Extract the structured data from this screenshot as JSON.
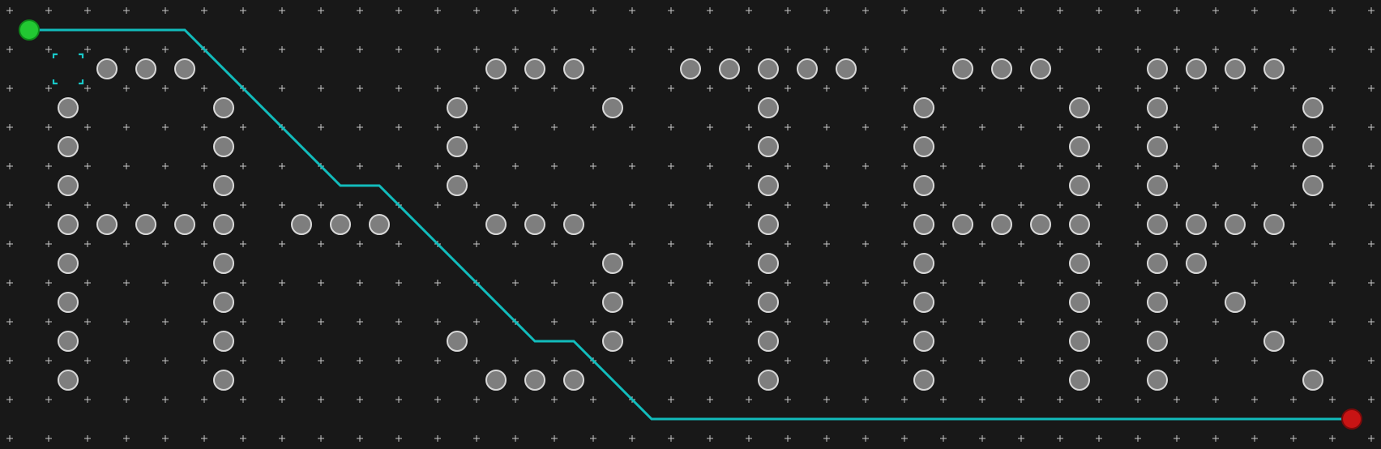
{
  "board": {
    "cols": 36,
    "rows": 12,
    "background": "#181818",
    "grid_marker_color": "#c8c8c8",
    "obstacle_fill": "#7e7e7e",
    "obstacle_stroke": "#d8d8d8",
    "path_color": "#12bcbc",
    "start_color": "#22c832",
    "goal_color": "#c81414"
  },
  "start": {
    "col": 0,
    "row": 0
  },
  "goal": {
    "col": 34,
    "row": 10
  },
  "cursor": {
    "col": 1,
    "row": 1
  },
  "path": [
    [
      0,
      0
    ],
    [
      4,
      0
    ],
    [
      8,
      4
    ],
    [
      9,
      4
    ],
    [
      13,
      8
    ],
    [
      14,
      8
    ],
    [
      16,
      10
    ],
    [
      34,
      10
    ]
  ],
  "obstacles": [
    [
      2,
      1
    ],
    [
      3,
      1
    ],
    [
      4,
      1
    ],
    [
      12,
      1
    ],
    [
      13,
      1
    ],
    [
      14,
      1
    ],
    [
      17,
      1
    ],
    [
      18,
      1
    ],
    [
      19,
      1
    ],
    [
      20,
      1
    ],
    [
      21,
      1
    ],
    [
      24,
      1
    ],
    [
      25,
      1
    ],
    [
      26,
      1
    ],
    [
      29,
      1
    ],
    [
      30,
      1
    ],
    [
      31,
      1
    ],
    [
      32,
      1
    ],
    [
      1,
      2
    ],
    [
      5,
      2
    ],
    [
      11,
      2
    ],
    [
      15,
      2
    ],
    [
      19,
      2
    ],
    [
      23,
      2
    ],
    [
      27,
      2
    ],
    [
      29,
      2
    ],
    [
      33,
      2
    ],
    [
      1,
      3
    ],
    [
      5,
      3
    ],
    [
      11,
      3
    ],
    [
      19,
      3
    ],
    [
      23,
      3
    ],
    [
      27,
      3
    ],
    [
      29,
      3
    ],
    [
      33,
      3
    ],
    [
      1,
      4
    ],
    [
      5,
      4
    ],
    [
      11,
      4
    ],
    [
      19,
      4
    ],
    [
      23,
      4
    ],
    [
      27,
      4
    ],
    [
      29,
      4
    ],
    [
      33,
      4
    ],
    [
      1,
      5
    ],
    [
      2,
      5
    ],
    [
      3,
      5
    ],
    [
      4,
      5
    ],
    [
      5,
      5
    ],
    [
      7,
      5
    ],
    [
      8,
      5
    ],
    [
      9,
      5
    ],
    [
      12,
      5
    ],
    [
      13,
      5
    ],
    [
      14,
      5
    ],
    [
      19,
      5
    ],
    [
      23,
      5
    ],
    [
      24,
      5
    ],
    [
      25,
      5
    ],
    [
      26,
      5
    ],
    [
      27,
      5
    ],
    [
      29,
      5
    ],
    [
      30,
      5
    ],
    [
      31,
      5
    ],
    [
      32,
      5
    ],
    [
      1,
      6
    ],
    [
      5,
      6
    ],
    [
      15,
      6
    ],
    [
      19,
      6
    ],
    [
      23,
      6
    ],
    [
      27,
      6
    ],
    [
      29,
      6
    ],
    [
      30,
      6
    ],
    [
      1,
      7
    ],
    [
      5,
      7
    ],
    [
      15,
      7
    ],
    [
      19,
      7
    ],
    [
      23,
      7
    ],
    [
      27,
      7
    ],
    [
      29,
      7
    ],
    [
      31,
      7
    ],
    [
      1,
      8
    ],
    [
      5,
      8
    ],
    [
      11,
      8
    ],
    [
      15,
      8
    ],
    [
      19,
      8
    ],
    [
      23,
      8
    ],
    [
      27,
      8
    ],
    [
      29,
      8
    ],
    [
      32,
      8
    ],
    [
      1,
      9
    ],
    [
      5,
      9
    ],
    [
      12,
      9
    ],
    [
      13,
      9
    ],
    [
      14,
      9
    ],
    [
      19,
      9
    ],
    [
      23,
      9
    ],
    [
      27,
      9
    ],
    [
      29,
      9
    ],
    [
      33,
      9
    ]
  ]
}
